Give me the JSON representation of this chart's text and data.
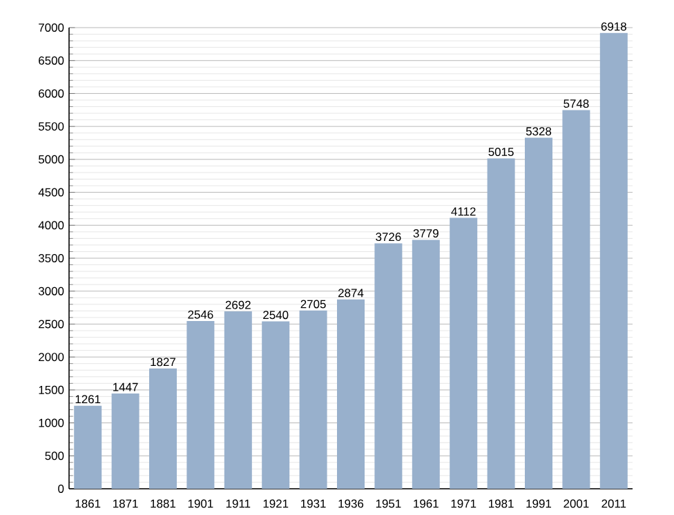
{
  "chart_data": {
    "type": "bar",
    "categories": [
      "1861",
      "1871",
      "1881",
      "1901",
      "1911",
      "1921",
      "1931",
      "1936",
      "1951",
      "1961",
      "1971",
      "1981",
      "1991",
      "2001",
      "2011"
    ],
    "values": [
      1261,
      1447,
      1827,
      2546,
      2692,
      2540,
      2705,
      2874,
      3726,
      3779,
      4112,
      5015,
      5328,
      5748,
      6918
    ],
    "color": "#98b0cc",
    "ylim": [
      0,
      7000
    ],
    "yticks": [
      0,
      500,
      1000,
      1500,
      2000,
      2500,
      3000,
      3500,
      4000,
      4500,
      5000,
      5500,
      6000,
      6500,
      7000
    ],
    "grid": "y",
    "data_labels": true
  }
}
